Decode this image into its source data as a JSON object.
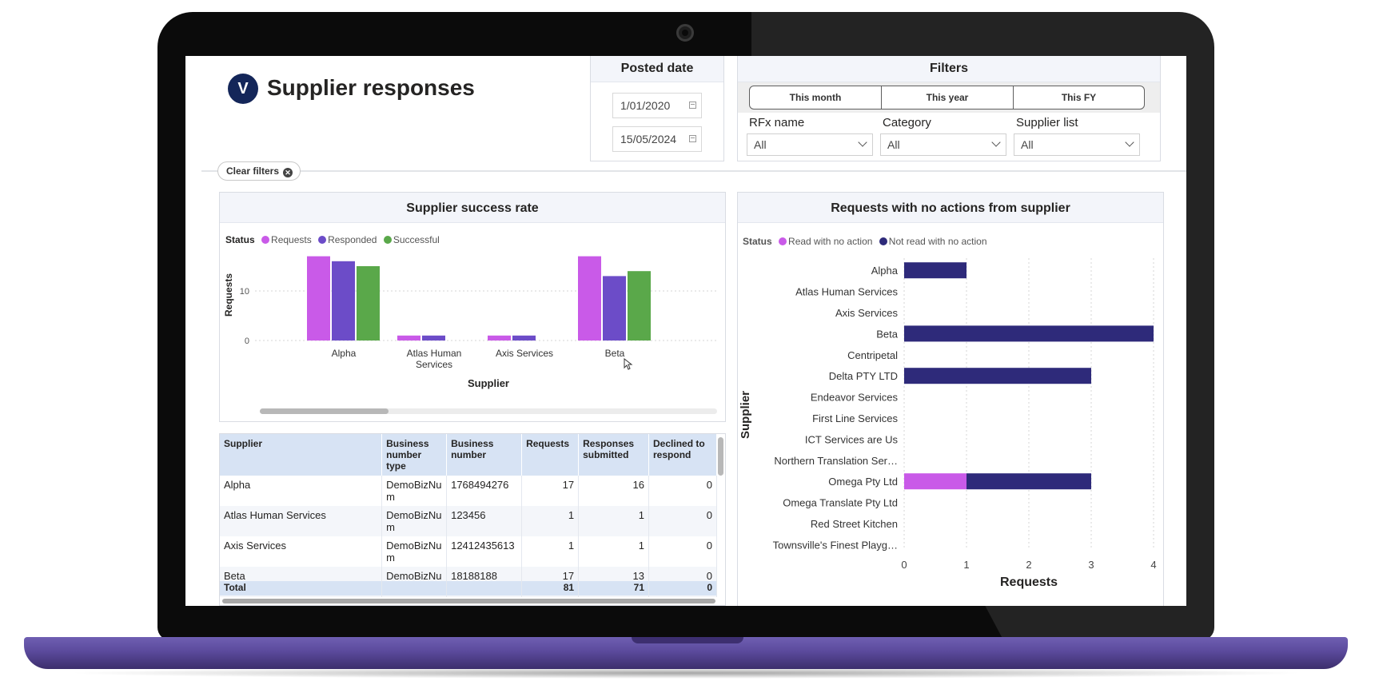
{
  "app": {
    "title": "Supplier responses",
    "logo_text": "V"
  },
  "posted_date": {
    "header": "Posted date",
    "start": "1/01/2020",
    "end": "15/05/2024"
  },
  "filters": {
    "header": "Filters",
    "periods": [
      "This month",
      "This year",
      "This FY"
    ],
    "rfx_label": "RFx name",
    "rfx_value": "All",
    "category_label": "Category",
    "category_value": "All",
    "supplier_list_label": "Supplier list",
    "supplier_list_value": "All"
  },
  "clear_filters_label": "Clear filters",
  "success_chart": {
    "title": "Supplier success rate",
    "legend_title": "Status",
    "colors": {
      "requests": "#c95ae8",
      "responded": "#6c4cc8",
      "successful": "#5aa84a"
    },
    "chart_data": {
      "type": "bar",
      "title": "Supplier success rate",
      "xlabel": "Supplier",
      "ylabel": "Requests",
      "yticks": [
        "0",
        "10"
      ],
      "ylim": [
        0,
        20
      ],
      "categories": [
        "Alpha",
        "Atlas Human Services",
        "Axis Services",
        "Beta"
      ],
      "category_lines": [
        [
          "Alpha"
        ],
        [
          "Atlas Human",
          "Services"
        ],
        [
          "Axis Services"
        ],
        [
          "Beta"
        ]
      ],
      "series": [
        {
          "name": "Requests",
          "values": [
            17,
            1,
            1,
            17
          ]
        },
        {
          "name": "Responded",
          "values": [
            16,
            1,
            1,
            13
          ]
        },
        {
          "name": "Successful",
          "values": [
            15,
            0,
            0,
            14
          ]
        }
      ],
      "scrollbar_position": 0.0,
      "scrollbar_fraction": 0.28
    }
  },
  "noaction_chart": {
    "title": "Requests with no actions from supplier",
    "legend_title": "Status",
    "colors": {
      "read": "#c95ae8",
      "not_read": "#2e2a7a"
    },
    "chart_data": {
      "type": "bar",
      "orientation": "horizontal",
      "stacked": true,
      "title": "Requests with no actions from supplier",
      "xlabel": "Requests",
      "ylabel": "Supplier",
      "xlim": [
        0,
        4
      ],
      "xticks": [
        "0",
        "1",
        "2",
        "3",
        "4"
      ],
      "categories": [
        "Alpha",
        "Atlas Human Services",
        "Axis Services",
        "Beta",
        "Centripetal",
        "Delta PTY LTD",
        "Endeavor Services",
        "First Line Services",
        "ICT Services are Us",
        "Northern Translation Ser…",
        "Omega Pty Ltd",
        "Omega Translate Pty Ltd",
        "Red Street Kitchen",
        "Townsville's Finest Playg…"
      ],
      "series": [
        {
          "name": "Read with no action",
          "values": [
            0,
            0,
            0,
            0,
            0,
            0,
            0,
            0,
            0,
            0,
            1,
            0,
            0,
            0
          ]
        },
        {
          "name": "Not read with no action",
          "values": [
            1,
            0,
            0,
            4,
            0,
            3,
            0,
            0,
            0,
            0,
            2,
            0,
            0,
            0
          ]
        }
      ]
    }
  },
  "table": {
    "columns": [
      {
        "label": "Supplier"
      },
      {
        "label": "Business number type"
      },
      {
        "label": "Business number"
      },
      {
        "label": "Requests"
      },
      {
        "label": "Responses submitted"
      },
      {
        "label": "Declined to respond"
      }
    ],
    "rows": [
      {
        "supplier": "Alpha",
        "bn_type": "DemoBizNum",
        "bn": "1768494276",
        "requests": "17",
        "responses": "16",
        "declined": "0"
      },
      {
        "supplier": "Atlas Human Services",
        "bn_type": "DemoBizNum",
        "bn": "123456",
        "requests": "1",
        "responses": "1",
        "declined": "0"
      },
      {
        "supplier": "Axis Services",
        "bn_type": "DemoBizNum",
        "bn": "12412435613",
        "requests": "1",
        "responses": "1",
        "declined": "0"
      },
      {
        "supplier": "Beta",
        "bn_type": "DemoBizNum",
        "bn": "18188188",
        "requests": "17",
        "responses": "13",
        "declined": "0"
      }
    ],
    "total": {
      "label": "Total",
      "requests": "81",
      "responses": "71",
      "declined": "0"
    }
  }
}
